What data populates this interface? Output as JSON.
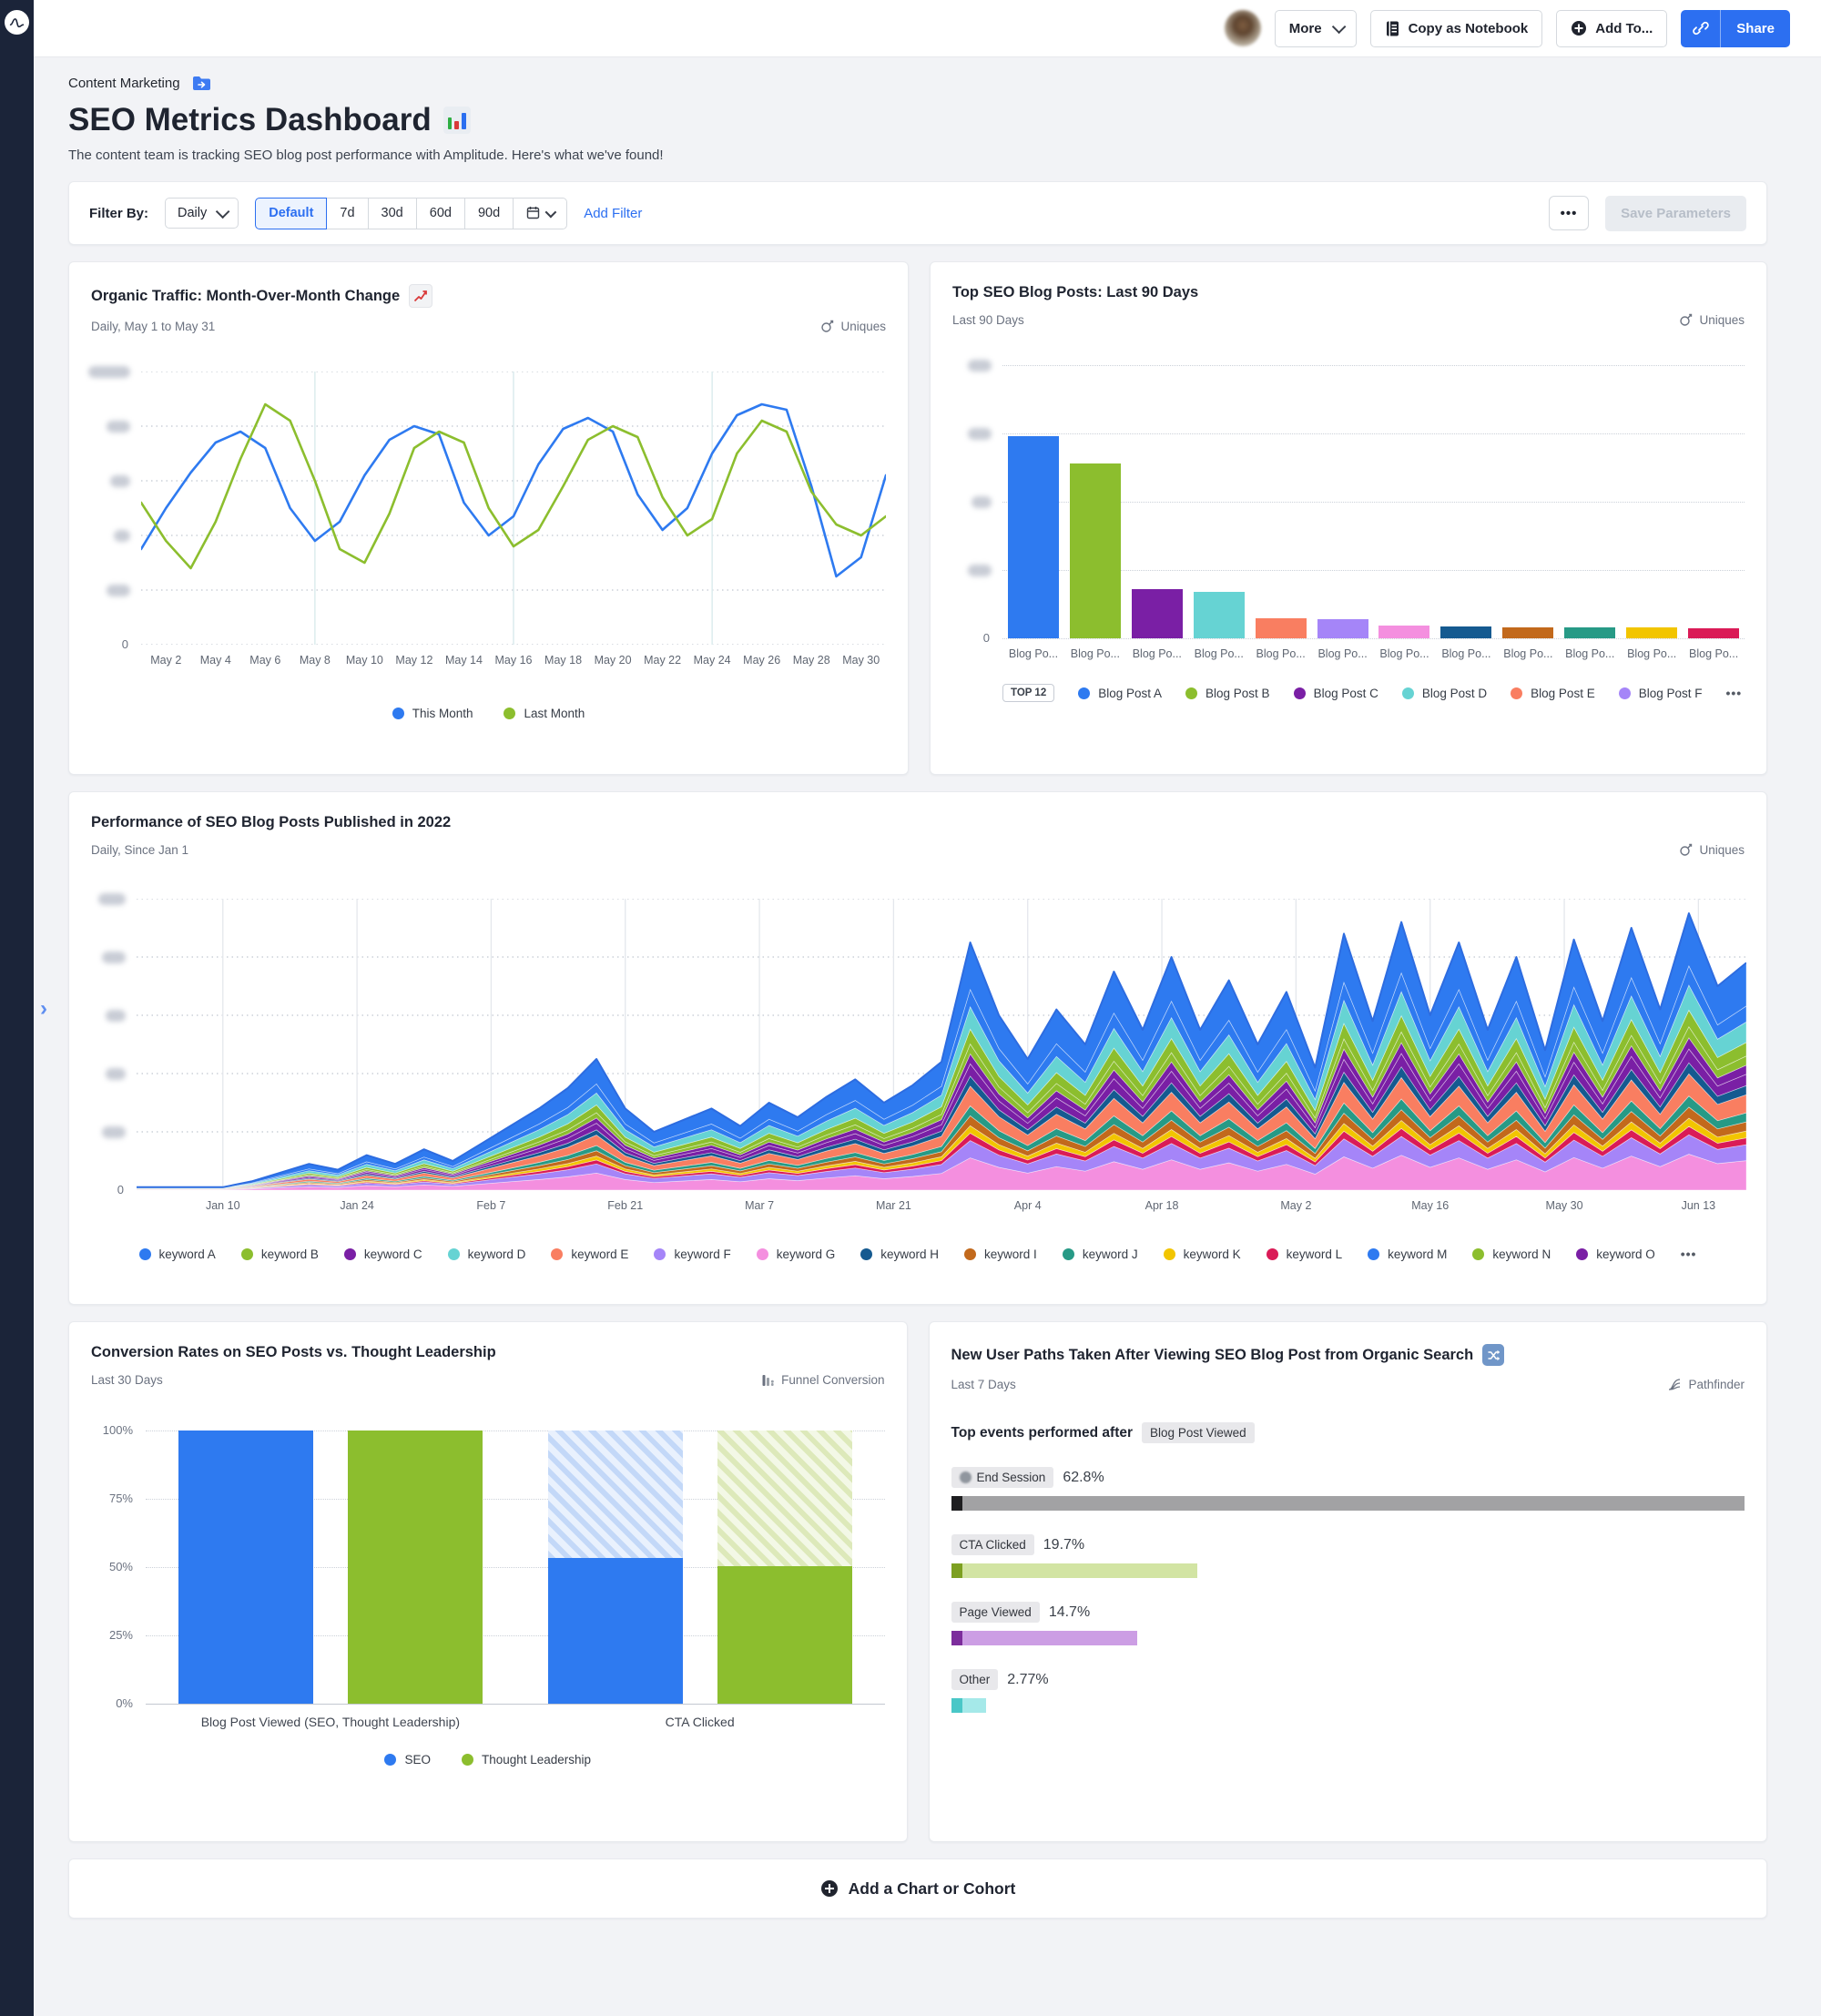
{
  "header": {
    "more_label": "More",
    "copy_notebook_label": "Copy as Notebook",
    "add_to_label": "Add To...",
    "share_label": "Share"
  },
  "breadcrumb": {
    "label": "Content Marketing"
  },
  "page": {
    "title": "SEO Metrics Dashboard",
    "subtitle": "The content team is tracking SEO blog post performance with Amplitude. Here's what we've found!"
  },
  "filter_bar": {
    "label": "Filter By:",
    "interval": "Daily",
    "segments": [
      "Default",
      "7d",
      "30d",
      "60d",
      "90d"
    ],
    "selected_segment": "Default",
    "add_filter_label": "Add Filter",
    "more_label": "•••",
    "save_parameters_label": "Save Parameters"
  },
  "palette": [
    "#2e7af0",
    "#8cbe2e",
    "#7a1fa5",
    "#66d3d3",
    "#f97e61",
    "#a585f8",
    "#f48fdf",
    "#155a90",
    "#c2691c",
    "#279a86",
    "#f2c500",
    "#da1b57"
  ],
  "charts": {
    "organic_traffic": {
      "title": "Organic Traffic: Month-Over-Month Change",
      "subtitle": "Daily, May 1 to May 31",
      "metric_label": "Uniques",
      "chart_data": {
        "type": "line",
        "x_ticks": [
          "May 2",
          "May 4",
          "May 6",
          "May 8",
          "May 10",
          "May 12",
          "May 14",
          "May 16",
          "May 18",
          "May 20",
          "May 22",
          "May 24",
          "May 26",
          "May 28",
          "May 30"
        ],
        "y_axis_note": "y-axis tick labels blurred in source; values are relative 0-100",
        "ylim": [
          0,
          100
        ],
        "series": [
          {
            "name": "This Month",
            "color": "#2e7af0",
            "values": [
              35,
              50,
              63,
              74,
              78,
              72,
              50,
              38,
              45,
              62,
              75,
              80,
              77,
              52,
              40,
              47,
              66,
              79,
              83,
              78,
              55,
              42,
              50,
              70,
              84,
              88,
              86,
              58,
              25,
              32,
              62
            ]
          },
          {
            "name": "Last Month",
            "color": "#8cbe2e",
            "values": [
              52,
              38,
              28,
              45,
              68,
              88,
              82,
              60,
              35,
              30,
              48,
              72,
              78,
              74,
              50,
              36,
              42,
              58,
              75,
              80,
              76,
              54,
              40,
              46,
              70,
              82,
              78,
              56,
              44,
              40,
              47
            ]
          }
        ]
      }
    },
    "top_posts": {
      "title": "Top SEO Blog Posts: Last 90 Days",
      "subtitle": "Last 90 Days",
      "metric_label": "Uniques",
      "legend_badge": "TOP 12",
      "legend_overflow": "•••",
      "chart_data": {
        "type": "bar",
        "categories": [
          "Blog Po...",
          "Blog Po...",
          "Blog Po...",
          "Blog Po...",
          "Blog Po...",
          "Blog Po...",
          "Blog Po...",
          "Blog Po...",
          "Blog Po...",
          "Blog Po...",
          "Blog Po...",
          "Blog Po..."
        ],
        "values_relative": [
          74,
          64,
          18,
          17,
          7.5,
          7,
          4.7,
          4.3,
          4,
          4,
          4,
          3.7
        ],
        "colors": [
          "#2e7af0",
          "#8cbe2e",
          "#7a1fa5",
          "#66d3d3",
          "#f97e61",
          "#a585f8",
          "#f48fdf",
          "#155a90",
          "#c2691c",
          "#279a86",
          "#f2c500",
          "#da1b57"
        ],
        "y_axis_note": "y-axis tick labels blurred in source",
        "legend": [
          {
            "label": "Blog Post A",
            "color": "#2e7af0"
          },
          {
            "label": "Blog Post B",
            "color": "#8cbe2e"
          },
          {
            "label": "Blog Post C",
            "color": "#7a1fa5"
          },
          {
            "label": "Blog Post D",
            "color": "#66d3d3"
          },
          {
            "label": "Blog Post E",
            "color": "#f97e61"
          },
          {
            "label": "Blog Post F",
            "color": "#a585f8"
          }
        ]
      }
    },
    "keyword_performance": {
      "title": "Performance of SEO Blog Posts Published in 2022",
      "subtitle": "Daily, Since Jan 1",
      "metric_label": "Uniques",
      "legend_overflow": "•••",
      "chart_data": {
        "type": "area",
        "stacked": true,
        "x_ticks": [
          "Jan 10",
          "Jan 24",
          "Feb 7",
          "Feb 21",
          "Mar 7",
          "Mar 21",
          "Apr 4",
          "Apr 18",
          "May 2",
          "May 16",
          "May 30",
          "Jun 13"
        ],
        "tick_start": 0.0536,
        "tick_step": 0.08333,
        "y_axis_note": "y-axis tick labels blurred in source; totals are relative 0-100",
        "total_relative": [
          1,
          1,
          1,
          1,
          3,
          6,
          9,
          7,
          12,
          9,
          14,
          10,
          16,
          22,
          28,
          35,
          45,
          28,
          20,
          24,
          28,
          22,
          30,
          25,
          32,
          38,
          30,
          36,
          44,
          85,
          60,
          45,
          62,
          50,
          75,
          55,
          80,
          55,
          72,
          50,
          68,
          42,
          88,
          58,
          92,
          60,
          85,
          55,
          80,
          48,
          86,
          58,
          90,
          62,
          95,
          70,
          78
        ],
        "stack": [
          {
            "name": "keyword G",
            "color": "#f48fdf",
            "share": 0.13
          },
          {
            "name": "keyword F",
            "color": "#a585f8",
            "share": 0.07
          },
          {
            "name": "keyword L",
            "color": "#da1b57",
            "share": 0.03
          },
          {
            "name": "keyword K",
            "color": "#f2c500",
            "share": 0.03
          },
          {
            "name": "keyword I",
            "color": "#c2691c",
            "share": 0.04
          },
          {
            "name": "keyword J",
            "color": "#279a86",
            "share": 0.04
          },
          {
            "name": "keyword E",
            "color": "#f97e61",
            "share": 0.08
          },
          {
            "name": "keyword H",
            "color": "#155a90",
            "share": 0.04
          },
          {
            "name": "keyword C",
            "color": "#7a1fa5",
            "share": 0.05
          },
          {
            "name": "keyword O",
            "color": "#7a1fa5",
            "share": 0.04
          },
          {
            "name": "keyword N",
            "color": "#8cbe2e",
            "share": 0.04
          },
          {
            "name": "keyword B",
            "color": "#8cbe2e",
            "share": 0.06
          },
          {
            "name": "keyword D",
            "color": "#66d3d3",
            "share": 0.09
          },
          {
            "name": "keyword M",
            "color": "#2e7af0",
            "share": 0.07
          },
          {
            "name": "keyword A",
            "color": "#2e7af0",
            "share": 0.19
          }
        ],
        "legend_order": [
          "keyword A",
          "keyword B",
          "keyword C",
          "keyword D",
          "keyword E",
          "keyword F",
          "keyword G",
          "keyword H",
          "keyword I",
          "keyword J",
          "keyword K",
          "keyword L",
          "keyword M",
          "keyword N",
          "keyword O"
        ]
      }
    },
    "funnel": {
      "title": "Conversion Rates on SEO Posts vs. Thought Leadership",
      "subtitle": "Last 30 Days",
      "metric_label": "Funnel Conversion",
      "chart_data": {
        "type": "bar",
        "categories": [
          "Blog Post Viewed (SEO, Thought Leadership)",
          "CTA Clicked"
        ],
        "y_ticks": [
          "0%",
          "25%",
          "50%",
          "75%",
          "100%"
        ],
        "series": [
          {
            "name": "SEO",
            "color": "#2e7af0",
            "hatch_colors": [
              "#c3d8f8",
              "#e9f1fd"
            ],
            "values": [
              100,
              53.5
            ]
          },
          {
            "name": "Thought Leadership",
            "color": "#8cbe2e",
            "hatch_colors": [
              "#dde9ba",
              "#f3f8e6"
            ],
            "values": [
              100,
              50.5
            ]
          }
        ]
      }
    },
    "pathfinder": {
      "title": "New User Paths Taken After Viewing SEO Blog Post from Organic Search",
      "subtitle": "Last 7 Days",
      "metric_label": "Pathfinder",
      "intro": "Top events performed after",
      "intro_badge": "Blog Post Viewed",
      "rows": [
        {
          "label": "End Session",
          "value": "62.8%",
          "bar_pct": 100,
          "bar_color": "#a2a2a4",
          "cap_color": "#1e1e20",
          "has_icon": true
        },
        {
          "label": "CTA Clicked",
          "value": "19.7%",
          "bar_pct": 31,
          "bar_color": "#d2e4a3",
          "cap_color": "#7da021",
          "has_icon": false
        },
        {
          "label": "Page Viewed",
          "value": "14.7%",
          "bar_pct": 23.5,
          "bar_color": "#cc9ee4",
          "cap_color": "#7c2d9c",
          "has_icon": false
        },
        {
          "label": "Other",
          "value": "2.77%",
          "bar_pct": 4.4,
          "bar_color": "#a5e9e9",
          "cap_color": "#49c7c7",
          "has_icon": false
        }
      ]
    }
  },
  "add_chart": {
    "label": "Add a Chart or Cohort"
  }
}
